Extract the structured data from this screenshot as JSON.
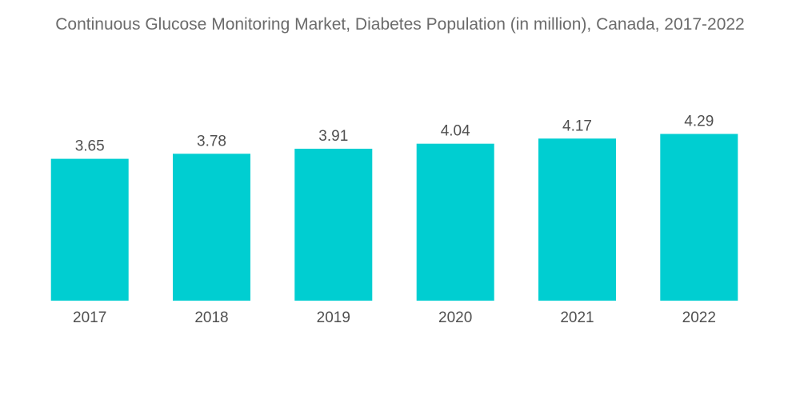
{
  "chart_data": {
    "type": "bar",
    "title": "Continuous Glucose Monitoring Market, Diabetes Population (in million), Canada, 2017-2022",
    "categories": [
      "2017",
      "2018",
      "2019",
      "2020",
      "2021",
      "2022"
    ],
    "values": [
      3.65,
      3.78,
      3.91,
      4.04,
      4.17,
      4.29
    ],
    "value_labels": [
      "3.65",
      "3.78",
      "3.91",
      "4.04",
      "4.17",
      "4.29"
    ],
    "xlabel": "",
    "ylabel": "",
    "ylim": [
      0,
      4.95
    ],
    "grid": false,
    "legend": "none",
    "colors": {
      "bar": "#00ced1",
      "text": "#505050",
      "title": "#6b6b6b"
    }
  }
}
